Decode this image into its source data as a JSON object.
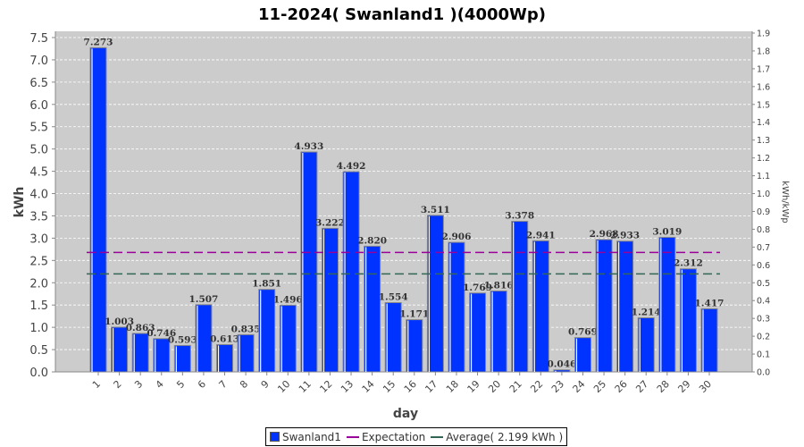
{
  "chart_data": {
    "type": "bar",
    "title": "11-2024( Swanland1 )(4000Wp)",
    "xlabel": "day",
    "ylabel": "kWh",
    "ylabel_right": "kWh/kWp",
    "ylim": [
      0,
      7.5
    ],
    "ylim_right": [
      0,
      1.9
    ],
    "yticks": [
      "0.0",
      "0.5",
      "1.0",
      "1.5",
      "2.0",
      "2.5",
      "3.0",
      "3.5",
      "4.0",
      "4.5",
      "5.0",
      "5.5",
      "6.0",
      "6.5",
      "7.0",
      "7.5"
    ],
    "yticks_right": [
      "0.0",
      "0.1",
      "0.2",
      "0.3",
      "0.4",
      "0.5",
      "0.6",
      "0.7",
      "0.8",
      "0.9",
      "1.0",
      "1.1",
      "1.2",
      "1.3",
      "1.4",
      "1.5",
      "1.6",
      "1.7",
      "1.8",
      "1.9"
    ],
    "categories": [
      "1",
      "2",
      "3",
      "4",
      "5",
      "6",
      "7",
      "8",
      "9",
      "10",
      "11",
      "12",
      "13",
      "14",
      "15",
      "16",
      "17",
      "18",
      "19",
      "20",
      "21",
      "22",
      "23",
      "24",
      "25",
      "26",
      "27",
      "28",
      "29",
      "30"
    ],
    "series": [
      {
        "name": "Swanland1",
        "color": "#0033ff",
        "values": [
          7.273,
          1.003,
          0.863,
          0.746,
          0.593,
          1.507,
          0.613,
          0.835,
          1.851,
          1.496,
          4.933,
          3.222,
          4.492,
          2.82,
          1.554,
          1.171,
          3.511,
          2.906,
          1.769,
          1.816,
          3.378,
          2.941,
          0.046,
          0.769,
          2.968,
          2.933,
          1.214,
          3.019,
          2.312,
          1.417
        ]
      }
    ],
    "labels": [
      "7.273",
      "1.003",
      "0.863",
      "0.746",
      "0.593",
      "1.507",
      "0.613",
      "0.835",
      "1.851",
      "1.496",
      "4.933",
      "3.222",
      "4.492",
      "2.820",
      "1.554",
      "1.171",
      "3.511",
      "2.906",
      "1.769",
      "1.816",
      "3.378",
      "2.941",
      "0.046",
      "0.769",
      "2.968",
      "2.933",
      "1.214",
      "3.019",
      "2.312",
      "1.417"
    ],
    "expectation": {
      "name": "Expectation",
      "value": 2.68,
      "color": "#990099"
    },
    "average": {
      "name": "Average( 2.199 kWh )",
      "value": 2.199,
      "color": "#336655"
    },
    "grid": true,
    "legend": "bottom"
  }
}
